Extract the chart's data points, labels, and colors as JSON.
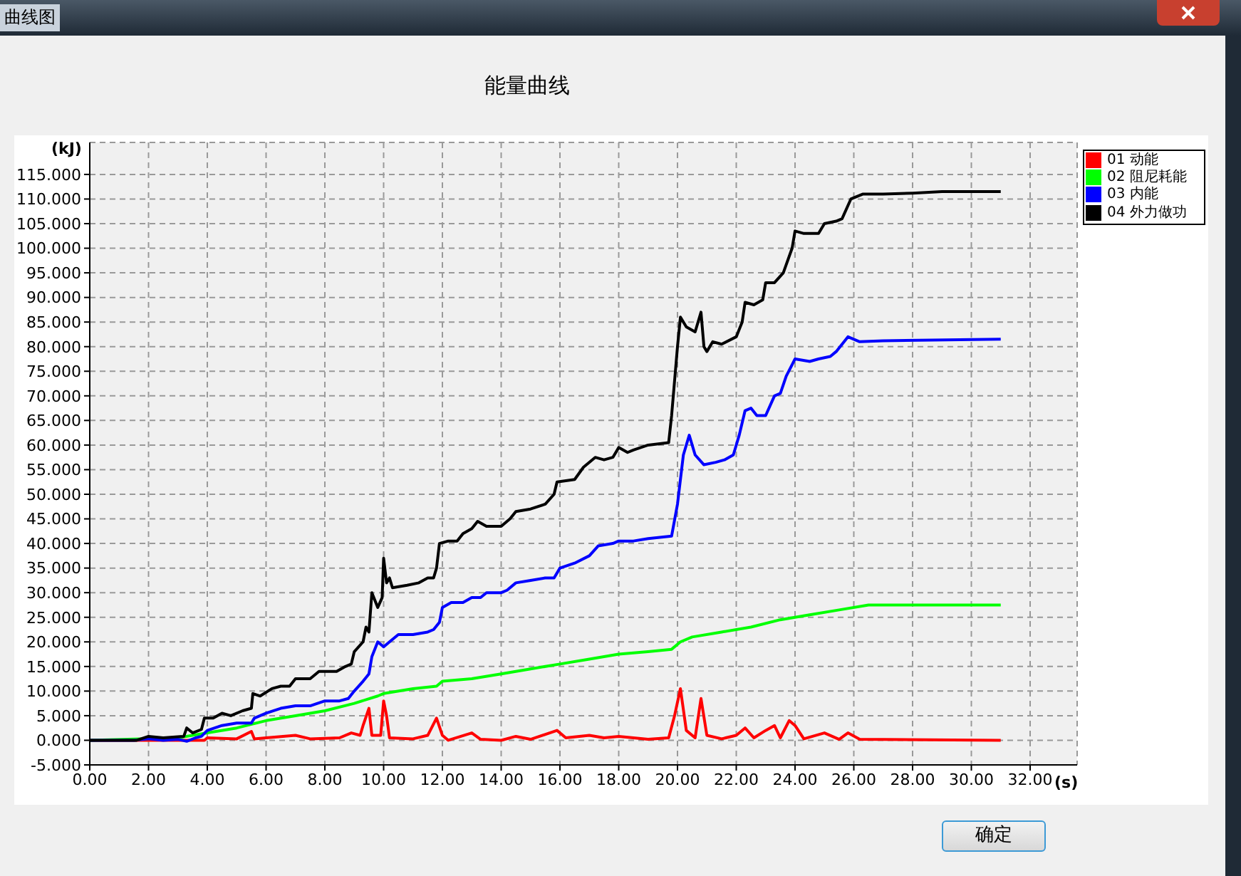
{
  "chart_data": {
    "type": "line",
    "title": "能量曲线",
    "xlabel": "(s)",
    "ylabel": "(kJ)",
    "annotations": [
      "曲线图",
      "确定"
    ],
    "xlim": [
      0,
      33.6
    ],
    "ylim": [
      -5,
      121.5
    ],
    "xticks": [
      {
        "value": 0,
        "label": "0.00"
      },
      {
        "value": 2,
        "label": "2.00"
      },
      {
        "value": 4,
        "label": "4.00"
      },
      {
        "value": 6,
        "label": "6.00"
      },
      {
        "value": 8,
        "label": "8.00"
      },
      {
        "value": 10,
        "label": "10.00"
      },
      {
        "value": 12,
        "label": "12.00"
      },
      {
        "value": 14,
        "label": "14.00"
      },
      {
        "value": 16,
        "label": "16.00"
      },
      {
        "value": 18,
        "label": "18.00"
      },
      {
        "value": 20,
        "label": "20.00"
      },
      {
        "value": 22,
        "label": "22.00"
      },
      {
        "value": 24,
        "label": "24.00"
      },
      {
        "value": 26,
        "label": "26.00"
      },
      {
        "value": 28,
        "label": "28.00"
      },
      {
        "value": 30,
        "label": "30.00"
      },
      {
        "value": 32,
        "label": "32.00"
      }
    ],
    "yticks": [
      {
        "value": -5,
        "label": "-5.000"
      },
      {
        "value": 0,
        "label": "0.000"
      },
      {
        "value": 5,
        "label": "5.000"
      },
      {
        "value": 10,
        "label": "10.000"
      },
      {
        "value": 15,
        "label": "15.000"
      },
      {
        "value": 20,
        "label": "20.000"
      },
      {
        "value": 25,
        "label": "25.000"
      },
      {
        "value": 30,
        "label": "30.000"
      },
      {
        "value": 35,
        "label": "35.000"
      },
      {
        "value": 40,
        "label": "40.000"
      },
      {
        "value": 45,
        "label": "45.000"
      },
      {
        "value": 50,
        "label": "50.000"
      },
      {
        "value": 55,
        "label": "55.000"
      },
      {
        "value": 60,
        "label": "60.000"
      },
      {
        "value": 65,
        "label": "65.000"
      },
      {
        "value": 70,
        "label": "70.000"
      },
      {
        "value": 75,
        "label": "75.000"
      },
      {
        "value": 80,
        "label": "80.000"
      },
      {
        "value": 85,
        "label": "85.000"
      },
      {
        "value": 90,
        "label": "90.000"
      },
      {
        "value": 95,
        "label": "95.000"
      },
      {
        "value": 100,
        "label": "100.000"
      },
      {
        "value": 105,
        "label": "105.000"
      },
      {
        "value": 110,
        "label": "110.000"
      },
      {
        "value": 115,
        "label": "115.000"
      }
    ],
    "grid": true,
    "legend": "top right",
    "marker": "none",
    "line_style": "solid",
    "series": [
      {
        "name": "01 动能",
        "color": "#ff0000",
        "x": [
          0,
          3.9,
          4.0,
          5.0,
          5.5,
          5.6,
          6.0,
          7.0,
          7.5,
          8.5,
          8.9,
          9.2,
          9.3,
          9.5,
          9.6,
          9.9,
          10.0,
          10.1,
          10.2,
          11.0,
          11.5,
          11.8,
          12.0,
          12.2,
          13.0,
          13.3,
          14.0,
          14.5,
          15.0,
          15.9,
          16.2,
          17.0,
          17.5,
          18.0,
          19.0,
          19.7,
          19.9,
          20.1,
          20.3,
          20.6,
          20.8,
          21.0,
          21.5,
          22.0,
          22.3,
          22.6,
          23.0,
          23.3,
          23.5,
          23.8,
          24.0,
          24.3,
          25.0,
          25.5,
          25.8,
          26.2,
          31.0
        ],
        "values": [
          0,
          0,
          0.5,
          0.3,
          1.8,
          0.3,
          0.5,
          1,
          0.3,
          0.5,
          1.5,
          1,
          3,
          6.5,
          1,
          1,
          8,
          5,
          0.5,
          0.3,
          1,
          4.5,
          1,
          0,
          1.5,
          0.2,
          0,
          0.8,
          0.2,
          2,
          0.5,
          1,
          0.5,
          0.8,
          0.2,
          0.5,
          5,
          10.5,
          2,
          0.5,
          8.5,
          1,
          0.3,
          1,
          2.5,
          0.5,
          2,
          3,
          0.5,
          4,
          3,
          0.3,
          1.5,
          0.2,
          1.5,
          0.2,
          0
        ]
      },
      {
        "name": "02 阻尼耗能",
        "color": "#00ff00",
        "x": [
          0,
          3.0,
          4.0,
          5.0,
          6.0,
          7.0,
          8.0,
          9.0,
          9.8,
          10.0,
          11.0,
          11.8,
          12.0,
          13.0,
          14.0,
          15.0,
          16.0,
          17.0,
          18.0,
          19.0,
          19.8,
          20.1,
          20.5,
          21.5,
          22.5,
          23.5,
          24.5,
          25.5,
          26.5,
          31.0
        ],
        "values": [
          0,
          0.5,
          1.5,
          2.5,
          4,
          5,
          6,
          7.5,
          9,
          9.5,
          10.5,
          11,
          12,
          12.5,
          13.5,
          14.5,
          15.5,
          16.5,
          17.5,
          18,
          18.5,
          20,
          21,
          22,
          23,
          24.5,
          25.5,
          26.5,
          27.5,
          27.5
        ]
      },
      {
        "name": "03 内能",
        "color": "#0000ff",
        "x": [
          0,
          1.5,
          2.0,
          2.5,
          3.0,
          3.3,
          3.6,
          3.8,
          4.0,
          4.5,
          5.0,
          5.5,
          5.6,
          6.0,
          6.5,
          7.0,
          7.5,
          8.0,
          8.5,
          8.8,
          9.0,
          9.3,
          9.5,
          9.6,
          9.8,
          10.0,
          10.2,
          10.5,
          11.0,
          11.5,
          11.7,
          11.9,
          12.0,
          12.3,
          12.7,
          13.0,
          13.3,
          13.5,
          14.0,
          14.2,
          14.5,
          15.0,
          15.5,
          15.8,
          16.0,
          16.5,
          17.0,
          17.3,
          17.8,
          18.0,
          18.5,
          19.0,
          19.8,
          20.0,
          20.2,
          20.4,
          20.6,
          20.9,
          21.3,
          21.6,
          21.9,
          22.1,
          22.3,
          22.5,
          22.7,
          23.0,
          23.3,
          23.5,
          23.7,
          24.0,
          24.5,
          24.8,
          25.2,
          25.4,
          25.8,
          26.2,
          27.0,
          31.0
        ],
        "values": [
          0,
          0,
          0.3,
          0,
          0.2,
          -0.2,
          0.5,
          0.8,
          2,
          3,
          3.5,
          3.5,
          4.5,
          5.5,
          6.5,
          7,
          7,
          8,
          8,
          8.5,
          10,
          12,
          13.5,
          17,
          20,
          19,
          20,
          21.5,
          21.5,
          22,
          22.5,
          24,
          27,
          28,
          28,
          29,
          29,
          30,
          30,
          30.5,
          32,
          32.5,
          33,
          33,
          35,
          36,
          37.5,
          39.5,
          40,
          40.5,
          40.5,
          41,
          41.5,
          48,
          58,
          62,
          58,
          56,
          56.5,
          57,
          58,
          62,
          67,
          67.5,
          66,
          66,
          70,
          70.5,
          74,
          77.5,
          77,
          77.5,
          78,
          79,
          82,
          81,
          81.2,
          81.5
        ]
      },
      {
        "name": "04 外力做功",
        "color": "#000000",
        "x": [
          0,
          1.6,
          2.0,
          2.5,
          3.2,
          3.3,
          3.5,
          3.8,
          3.9,
          4.2,
          4.5,
          4.8,
          5.2,
          5.5,
          5.55,
          5.8,
          6.2,
          6.5,
          6.8,
          7.0,
          7.5,
          7.8,
          8.4,
          8.7,
          8.9,
          9.0,
          9.3,
          9.4,
          9.5,
          9.6,
          9.8,
          9.95,
          10.0,
          10.1,
          10.2,
          10.3,
          10.8,
          11.2,
          11.5,
          11.7,
          11.8,
          11.9,
          12.2,
          12.5,
          12.7,
          13.0,
          13.2,
          13.5,
          14.0,
          14.3,
          14.5,
          15.0,
          15.5,
          15.8,
          15.9,
          16.5,
          16.8,
          17.2,
          17.5,
          17.8,
          18.0,
          18.3,
          18.5,
          19.0,
          19.7,
          19.8,
          20.0,
          20.1,
          20.3,
          20.6,
          20.8,
          20.9,
          21.0,
          21.2,
          21.5,
          22.0,
          22.2,
          22.3,
          22.6,
          22.9,
          23.0,
          23.3,
          23.6,
          23.9,
          24.0,
          24.3,
          24.8,
          25.0,
          25.4,
          25.6,
          25.9,
          26.3,
          27.0,
          28.0,
          29.0,
          31.0
        ],
        "values": [
          0,
          0,
          0.8,
          0.5,
          0.8,
          2.5,
          1.5,
          2.2,
          4.5,
          4.5,
          5.5,
          5,
          6,
          6.5,
          9.5,
          9,
          10.5,
          11,
          11,
          12.5,
          12.5,
          14,
          14,
          15,
          15.5,
          18,
          20,
          23,
          22,
          30,
          27,
          29,
          37,
          32,
          33,
          31,
          31.5,
          32,
          33,
          33,
          35,
          40,
          40.5,
          40.5,
          42,
          43,
          44.5,
          43.5,
          43.5,
          45,
          46.5,
          47,
          48,
          50,
          52.5,
          53,
          55.5,
          57.5,
          57,
          57.5,
          59.5,
          58.5,
          59,
          60,
          60.5,
          66,
          80,
          86,
          84,
          83,
          87,
          80,
          79,
          81,
          80.5,
          82,
          85,
          89,
          88.5,
          89.5,
          93,
          93,
          95,
          100,
          103.5,
          103,
          103,
          105,
          105.5,
          106,
          110,
          111,
          111,
          111.2,
          111.5,
          111.5
        ]
      }
    ]
  }
}
